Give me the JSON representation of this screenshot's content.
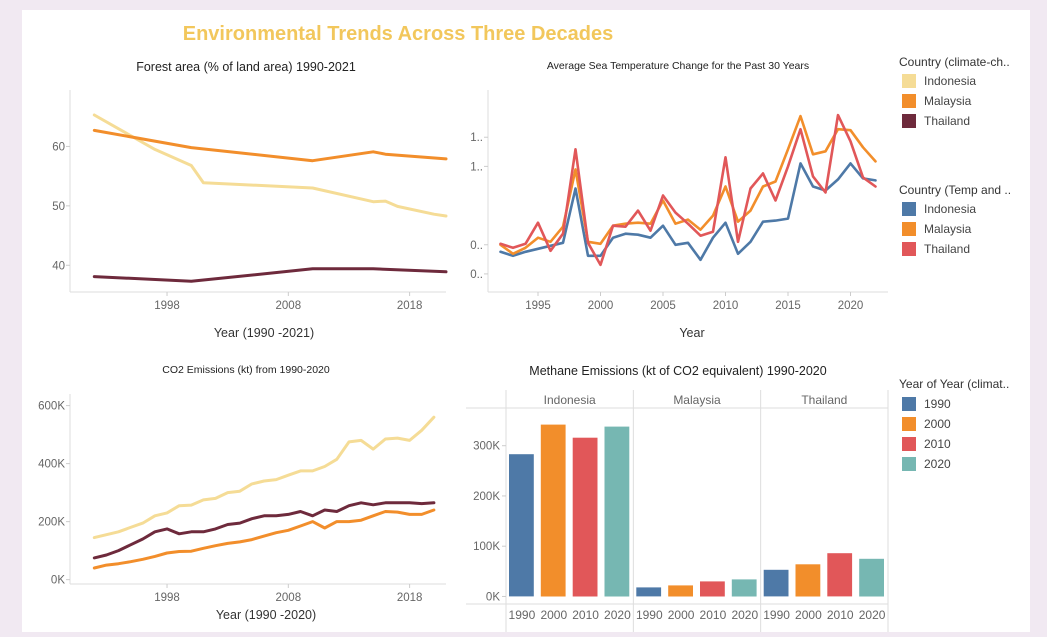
{
  "dashboard_title": "Environmental Trends Across Three Decades",
  "colors": {
    "title": "#f2c75c",
    "indonesia_light": "#f5dc96",
    "malaysia_orange": "#f28e2b",
    "thailand_maroon": "#6e2a3c",
    "indonesia_blue": "#4e79a7",
    "thailand_red": "#e15759",
    "teal": "#76b7b2"
  },
  "legends": {
    "climate": {
      "title": "Country (climate-ch..",
      "items": [
        {
          "label": "Indonesia",
          "color": "#f5dc96"
        },
        {
          "label": "Malaysia",
          "color": "#f28e2b"
        },
        {
          "label": "Thailand",
          "color": "#6e2a3c"
        }
      ]
    },
    "temp": {
      "title": "Country (Temp and ..",
      "items": [
        {
          "label": "Indonesia",
          "color": "#4e79a7"
        },
        {
          "label": "Malaysia",
          "color": "#f28e2b"
        },
        {
          "label": "Thailand",
          "color": "#e15759"
        }
      ]
    },
    "year": {
      "title": "Year of Year (climat..",
      "items": [
        {
          "label": "1990",
          "color": "#4e79a7"
        },
        {
          "label": "2000",
          "color": "#f28e2b"
        },
        {
          "label": "2010",
          "color": "#e15759"
        },
        {
          "label": "2020",
          "color": "#76b7b2"
        }
      ]
    }
  },
  "chart_data": [
    {
      "id": "forest",
      "type": "line",
      "title": "Forest area (% of land area) 1990-2021",
      "xlabel": "Year  (1990 -2021)",
      "ylabel": "",
      "xlim": [
        1990,
        2021
      ],
      "ylim": [
        35.5,
        69.5
      ],
      "x_ticks": [
        "1998",
        "2008",
        "2018"
      ],
      "y_ticks": [
        "40",
        "50",
        "60"
      ],
      "series": [
        {
          "name": "Indonesia",
          "color": "#f5dc96",
          "points": [
            [
              1992,
              65.3
            ],
            [
              1997,
              59.5
            ],
            [
              2000,
              56.8
            ],
            [
              2001,
              53.9
            ],
            [
              2010,
              53.0
            ],
            [
              2015,
              50.7
            ],
            [
              2016,
              50.8
            ],
            [
              2017,
              49.9
            ],
            [
              2020,
              48.6
            ],
            [
              2021,
              48.3
            ]
          ]
        },
        {
          "name": "Malaysia",
          "color": "#f28e2b",
          "points": [
            [
              1992,
              62.7
            ],
            [
              2000,
              59.8
            ],
            [
              2010,
              57.6
            ],
            [
              2015,
              59.1
            ],
            [
              2016,
              58.7
            ],
            [
              2021,
              57.9
            ]
          ]
        },
        {
          "name": "Thailand",
          "color": "#6e2a3c",
          "points": [
            [
              1992,
              38.1
            ],
            [
              2000,
              37.3
            ],
            [
              2010,
              39.4
            ],
            [
              2015,
              39.4
            ],
            [
              2021,
              38.9
            ]
          ]
        }
      ]
    },
    {
      "id": "sea_temp",
      "type": "line",
      "title": "Average Sea Temperature Change for the Past 30 Years",
      "xlabel": "Year",
      "ylabel": "",
      "xlim": [
        1991,
        2023
      ],
      "ylim": [
        -0.32,
        1.69
      ],
      "x_ticks": [
        "1995",
        "2000",
        "2005",
        "2010",
        "2015",
        "2020"
      ],
      "y_ticks": [
        "0..",
        "0..",
        "1..",
        "1.."
      ],
      "series": [
        {
          "name": "Indonesia",
          "color": "#4e79a7",
          "x": [
            1992,
            1993,
            1994,
            1995,
            1996,
            1997,
            1998,
            1999,
            2000,
            2001,
            2002,
            2003,
            2004,
            2005,
            2006,
            2007,
            2008,
            2009,
            2010,
            2011,
            2012,
            2013,
            2014,
            2015,
            2016,
            2017,
            2018,
            2019,
            2020,
            2021,
            2022
          ],
          "values": [
            0.08,
            0.04,
            0.08,
            0.11,
            0.14,
            0.17,
            0.71,
            0.04,
            0.04,
            0.22,
            0.26,
            0.25,
            0.22,
            0.34,
            0.15,
            0.17,
            0.0,
            0.22,
            0.37,
            0.06,
            0.18,
            0.38,
            0.39,
            0.41,
            0.96,
            0.73,
            0.69,
            0.8,
            0.96,
            0.81,
            0.79
          ]
        },
        {
          "name": "Malaysia",
          "color": "#f28e2b",
          "x": [
            1992,
            1993,
            1994,
            1995,
            1996,
            1997,
            1998,
            1999,
            2000,
            2001,
            2002,
            2003,
            2004,
            2005,
            2006,
            2007,
            2008,
            2009,
            2010,
            2011,
            2012,
            2013,
            2014,
            2015,
            2016,
            2017,
            2018,
            2019,
            2020,
            2021,
            2022
          ],
          "values": [
            0.15,
            0.06,
            0.12,
            0.22,
            0.18,
            0.33,
            0.9,
            0.18,
            0.16,
            0.34,
            0.36,
            0.37,
            0.36,
            0.59,
            0.36,
            0.4,
            0.3,
            0.44,
            0.73,
            0.38,
            0.49,
            0.73,
            0.78,
            1.1,
            1.43,
            1.05,
            1.08,
            1.3,
            1.29,
            1.12,
            0.98
          ]
        },
        {
          "name": "Thailand",
          "color": "#e15759",
          "x": [
            1992,
            1993,
            1994,
            1995,
            1996,
            1997,
            1998,
            1999,
            2000,
            2001,
            2002,
            2003,
            2004,
            2005,
            2006,
            2007,
            2008,
            2009,
            2010,
            2011,
            2012,
            2013,
            2014,
            2015,
            2016,
            2017,
            2018,
            2019,
            2020,
            2021,
            2022
          ],
          "values": [
            0.16,
            0.12,
            0.16,
            0.37,
            0.09,
            0.26,
            1.1,
            0.17,
            -0.05,
            0.34,
            0.33,
            0.49,
            0.29,
            0.64,
            0.47,
            0.36,
            0.24,
            0.28,
            1.02,
            0.18,
            0.71,
            0.86,
            0.59,
            0.93,
            1.3,
            0.83,
            0.67,
            1.44,
            1.18,
            0.82,
            0.73
          ]
        }
      ]
    },
    {
      "id": "co2",
      "type": "line",
      "title": "CO2 Emissions (kt) from 1990-2020",
      "xlabel": "Year (1990 -2020)",
      "ylabel": "",
      "xlim": [
        1990,
        2021
      ],
      "ylim": [
        -15000,
        640000
      ],
      "x_ticks": [
        "1998",
        "2008",
        "2018"
      ],
      "y_ticks": [
        "0K",
        "200K",
        "400K",
        "600K"
      ],
      "series": [
        {
          "name": "Indonesia",
          "color": "#f5dc96",
          "x": [
            1992,
            1993,
            1994,
            1995,
            1996,
            1997,
            1998,
            1999,
            2000,
            2001,
            2002,
            2003,
            2004,
            2005,
            2006,
            2007,
            2008,
            2009,
            2010,
            2011,
            2012,
            2013,
            2014,
            2015,
            2016,
            2017,
            2018,
            2019,
            2020
          ],
          "values": [
            145000,
            155000,
            165000,
            180000,
            195000,
            220000,
            230000,
            255000,
            257000,
            275000,
            280000,
            300000,
            305000,
            330000,
            340000,
            345000,
            360000,
            375000,
            375000,
            390000,
            415000,
            475000,
            480000,
            450000,
            485000,
            488000,
            480000,
            515000,
            560000
          ]
        },
        {
          "name": "Malaysia",
          "color": "#f28e2b",
          "x": [
            1992,
            1993,
            1994,
            1995,
            1996,
            1997,
            1998,
            1999,
            2000,
            2001,
            2002,
            2003,
            2004,
            2005,
            2006,
            2007,
            2008,
            2009,
            2010,
            2011,
            2012,
            2013,
            2014,
            2015,
            2016,
            2017,
            2018,
            2019,
            2020
          ],
          "values": [
            40000,
            50000,
            55000,
            62000,
            70000,
            80000,
            92000,
            97000,
            98000,
            108000,
            117000,
            125000,
            130000,
            138000,
            150000,
            162000,
            170000,
            185000,
            200000,
            178000,
            200000,
            200000,
            205000,
            220000,
            235000,
            233000,
            225000,
            225000,
            240000
          ]
        },
        {
          "name": "Thailand",
          "color": "#6e2a3c",
          "x": [
            1992,
            1993,
            1994,
            1995,
            1996,
            1997,
            1998,
            1999,
            2000,
            2001,
            2002,
            2003,
            2004,
            2005,
            2006,
            2007,
            2008,
            2009,
            2010,
            2011,
            2012,
            2013,
            2014,
            2015,
            2016,
            2017,
            2018,
            2019,
            2020
          ],
          "values": [
            75000,
            85000,
            100000,
            120000,
            140000,
            165000,
            175000,
            158000,
            165000,
            165000,
            175000,
            190000,
            195000,
            210000,
            220000,
            220000,
            225000,
            235000,
            220000,
            240000,
            235000,
            255000,
            265000,
            258000,
            265000,
            265000,
            265000,
            262000,
            265000
          ]
        }
      ]
    },
    {
      "id": "methane",
      "type": "bar",
      "title": "Methane Emissions (kt of CO2 equivalent) 1990-2020",
      "xlabel": "",
      "ylabel": "",
      "ylim": [
        -15000,
        375000
      ],
      "y_ticks": [
        "0K",
        "100K",
        "200K",
        "300K"
      ],
      "categories": [
        "1990",
        "2000",
        "2010",
        "2020"
      ],
      "groups": [
        {
          "name": "Indonesia",
          "values": [
            283000,
            342000,
            316000,
            338000
          ]
        },
        {
          "name": "Malaysia",
          "values": [
            18000,
            22000,
            30000,
            34000
          ]
        },
        {
          "name": "Thailand",
          "values": [
            53000,
            64000,
            86000,
            75000
          ]
        }
      ]
    }
  ]
}
